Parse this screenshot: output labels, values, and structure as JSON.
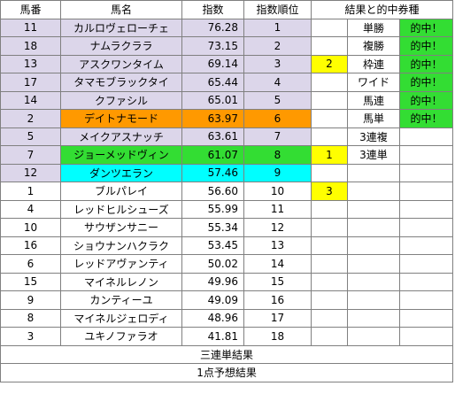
{
  "header": {
    "num": "馬番",
    "name": "馬名",
    "index": "指数",
    "rank": "指数順位",
    "result": "結果と的中券種"
  },
  "colors": {
    "lavender": "#dcd6ea",
    "orange": "#ff9900",
    "green": "#33dd33",
    "cyan": "#00ffff",
    "yellow": "#ffff00",
    "hit_green": "#33dd33"
  },
  "rows": [
    {
      "num": "11",
      "name": "カルロヴェローチェ",
      "index": "76.28",
      "rank": "1",
      "res": "",
      "bet": "単勝",
      "hit": "的中！",
      "shade": "lav",
      "hl": "",
      "res_bg": "",
      "hit_bg": "#33dd33"
    },
    {
      "num": "18",
      "name": "ナムラクララ",
      "index": "73.15",
      "rank": "2",
      "res": "",
      "bet": "複勝",
      "hit": "的中！",
      "shade": "lav",
      "hl": "",
      "res_bg": "",
      "hit_bg": "#33dd33"
    },
    {
      "num": "13",
      "name": "アスクワンタイム",
      "index": "69.14",
      "rank": "3",
      "res": "2",
      "bet": "枠連",
      "hit": "的中！",
      "shade": "lav",
      "hl": "",
      "res_bg": "#ffff00",
      "hit_bg": "#33dd33"
    },
    {
      "num": "17",
      "name": "タマモブラックタイ",
      "index": "65.44",
      "rank": "4",
      "res": "",
      "bet": "ワイド",
      "hit": "的中！",
      "shade": "lav",
      "hl": "",
      "res_bg": "",
      "hit_bg": "#33dd33"
    },
    {
      "num": "14",
      "name": "クファシル",
      "index": "65.01",
      "rank": "5",
      "res": "",
      "bet": "馬連",
      "hit": "的中！",
      "shade": "lav",
      "hl": "",
      "res_bg": "",
      "hit_bg": "#33dd33"
    },
    {
      "num": "2",
      "name": "デイトナモード",
      "index": "63.97",
      "rank": "6",
      "res": "",
      "bet": "馬単",
      "hit": "的中！",
      "shade": "lav",
      "hl": "#ff9900",
      "res_bg": "",
      "hit_bg": "#33dd33"
    },
    {
      "num": "5",
      "name": "メイクアスナッチ",
      "index": "63.61",
      "rank": "7",
      "res": "",
      "bet": "3連複",
      "hit": "",
      "shade": "lav",
      "hl": "",
      "res_bg": "",
      "hit_bg": ""
    },
    {
      "num": "7",
      "name": "ジョーメッドヴィン",
      "index": "61.07",
      "rank": "8",
      "res": "1",
      "bet": "3連単",
      "hit": "",
      "shade": "lav",
      "hl": "#33dd33",
      "res_bg": "#ffff00",
      "hit_bg": ""
    },
    {
      "num": "12",
      "name": "ダンツエラン",
      "index": "57.46",
      "rank": "9",
      "res": "",
      "bet": "",
      "hit": "",
      "shade": "lav",
      "hl": "#00ffff",
      "res_bg": "",
      "hit_bg": ""
    },
    {
      "num": "1",
      "name": "ブルパレイ",
      "index": "56.60",
      "rank": "10",
      "res": "3",
      "bet": "",
      "hit": "",
      "shade": "",
      "hl": "",
      "res_bg": "#ffff00",
      "hit_bg": ""
    },
    {
      "num": "4",
      "name": "レッドヒルシューズ",
      "index": "55.99",
      "rank": "11",
      "res": "",
      "bet": "",
      "hit": "",
      "shade": "",
      "hl": "",
      "res_bg": "",
      "hit_bg": ""
    },
    {
      "num": "10",
      "name": "サウザンサニー",
      "index": "55.34",
      "rank": "12",
      "res": "",
      "bet": "",
      "hit": "",
      "shade": "",
      "hl": "",
      "res_bg": "",
      "hit_bg": ""
    },
    {
      "num": "16",
      "name": "ショウナンハクラク",
      "index": "53.45",
      "rank": "13",
      "res": "",
      "bet": "",
      "hit": "",
      "shade": "",
      "hl": "",
      "res_bg": "",
      "hit_bg": ""
    },
    {
      "num": "6",
      "name": "レッドアヴァンティ",
      "index": "50.02",
      "rank": "14",
      "res": "",
      "bet": "",
      "hit": "",
      "shade": "",
      "hl": "",
      "res_bg": "",
      "hit_bg": ""
    },
    {
      "num": "15",
      "name": "マイネルレノン",
      "index": "49.96",
      "rank": "15",
      "res": "",
      "bet": "",
      "hit": "",
      "shade": "",
      "hl": "",
      "res_bg": "",
      "hit_bg": ""
    },
    {
      "num": "9",
      "name": "カンティーユ",
      "index": "49.09",
      "rank": "16",
      "res": "",
      "bet": "",
      "hit": "",
      "shade": "",
      "hl": "",
      "res_bg": "",
      "hit_bg": ""
    },
    {
      "num": "8",
      "name": "マイネルジェロディ",
      "index": "48.96",
      "rank": "17",
      "res": "",
      "bet": "",
      "hit": "",
      "shade": "",
      "hl": "",
      "res_bg": "",
      "hit_bg": ""
    },
    {
      "num": "3",
      "name": "ユキノファラオ",
      "index": "41.81",
      "rank": "18",
      "res": "",
      "bet": "",
      "hit": "",
      "shade": "",
      "hl": "",
      "res_bg": "",
      "hit_bg": ""
    }
  ],
  "footer": {
    "trifecta_result": "三連単結果",
    "one_point": "1点予想結果"
  }
}
